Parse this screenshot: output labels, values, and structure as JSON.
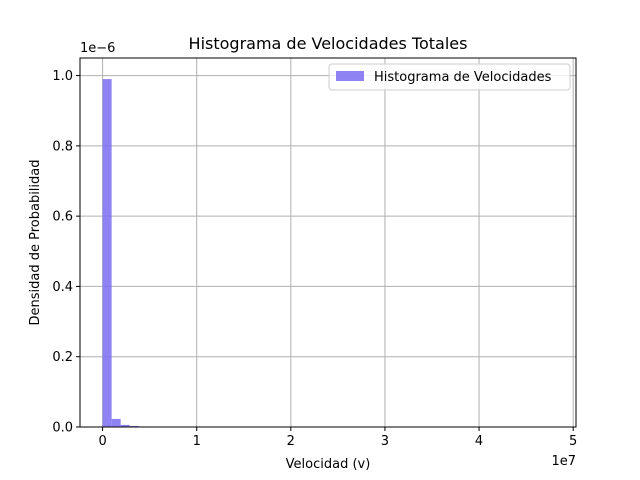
{
  "chart_data": {
    "type": "bar",
    "title": "Histograma de Velocidades Totales",
    "xlabel": "Velocidad (v)",
    "ylabel": "Densidad de Probabilidad",
    "x_offset_label": "1e7",
    "y_offset_label": "1e−6",
    "xlim": [
      -2.4,
      50.3
    ],
    "ylim": [
      0,
      1.05
    ],
    "x_ticks": [
      0,
      1,
      2,
      3,
      4,
      5
    ],
    "x_tick_labels": [
      "0",
      "1",
      "2",
      "3",
      "4",
      "5"
    ],
    "y_ticks": [
      0.0,
      0.2,
      0.4,
      0.6,
      0.8,
      1.0
    ],
    "y_tick_labels": [
      "0.0",
      "0.2",
      "0.4",
      "0.6",
      "0.8",
      "1.0"
    ],
    "x_scale_factor": 10,
    "bin_width": 0.96,
    "series": [
      {
        "name": "Histograma de Velocidades",
        "color": "#7b6cf0",
        "bins_x_start": [
          0.0,
          0.96,
          1.92,
          2.88,
          3.84,
          4.8
        ],
        "values": [
          0.99,
          0.023,
          0.006,
          0.003,
          0.0015,
          0.0008
        ]
      }
    ],
    "grid": true,
    "legend_position": "top-right"
  }
}
